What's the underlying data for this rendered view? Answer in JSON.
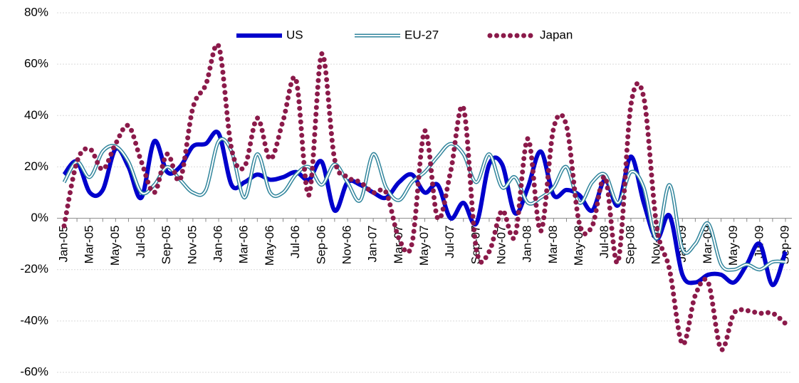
{
  "chart_data": {
    "type": "line",
    "categories": [
      "Jan-05",
      null,
      "Mar-05",
      null,
      "May-05",
      null,
      "Jul-05",
      null,
      "Sep-05",
      null,
      "Nov-05",
      null,
      "Jan-06",
      null,
      "Mar-06",
      null,
      "May-06",
      null,
      "Jul-06",
      null,
      "Sep-06",
      null,
      "Nov-06",
      null,
      "Jan-07",
      null,
      "Mar-07",
      null,
      "May-07",
      null,
      "Jul-07",
      null,
      "Sep-07",
      null,
      "Nov-07",
      null,
      "Jan-08",
      null,
      "Mar-08",
      null,
      "May-08",
      null,
      "Jul-08",
      null,
      "Sep-08",
      null,
      "Nov-08",
      null,
      "Jan-09",
      null,
      "Mar-09",
      null,
      "May-09",
      null,
      "Jul-09",
      null,
      "Sep-09"
    ],
    "series": [
      {
        "name": "US",
        "color": "#0000cc",
        "style": "solid",
        "values": [
          17,
          22,
          10,
          11,
          27,
          20,
          8,
          30,
          18,
          20,
          28,
          29,
          33,
          13,
          14,
          17,
          15,
          16,
          18,
          15,
          22,
          3,
          14,
          13,
          10,
          8,
          14,
          17,
          10,
          13,
          0,
          6,
          -2,
          21,
          21,
          2,
          12,
          26,
          9,
          11,
          9,
          3,
          15,
          5,
          24,
          6,
          -8,
          1,
          -22,
          -25,
          -22,
          -22,
          -25,
          -18,
          -10,
          -26,
          -13
        ]
      },
      {
        "name": "EU-27",
        "color": "#31859c",
        "style": "double",
        "values": [
          14,
          22,
          16,
          26,
          28,
          22,
          10,
          13,
          20,
          15,
          10,
          11,
          30,
          26,
          8,
          25,
          10,
          10,
          17,
          20,
          13,
          21,
          14,
          7,
          25,
          12,
          7,
          14,
          18,
          24,
          29,
          25,
          14,
          25,
          12,
          16,
          6,
          8,
          12,
          20,
          6,
          14,
          17,
          6,
          18,
          12,
          -8,
          13,
          -12,
          -10,
          -2,
          -18,
          -20,
          -18,
          -20,
          -17,
          -17
        ]
      },
      {
        "name": "Japan",
        "color": "#8b1a4a",
        "style": "dotted",
        "values": [
          -3,
          22,
          27,
          19,
          29,
          36,
          22,
          10,
          25,
          15,
          43,
          52,
          67,
          27,
          20,
          39,
          23,
          38,
          54,
          9,
          64,
          23,
          16,
          14,
          10,
          10,
          -8,
          -10,
          34,
          0,
          18,
          43,
          -12,
          -13,
          3,
          -7,
          31,
          -5,
          35,
          36,
          -2,
          -3,
          16,
          -17,
          44,
          47,
          -3,
          -20,
          -49,
          -30,
          -25,
          -51,
          -37,
          -36,
          -37,
          -37,
          -41
        ]
      }
    ],
    "ylim": [
      -60,
      80
    ],
    "yticks": [
      {
        "value": -60,
        "label": "-60%"
      },
      {
        "value": -40,
        "label": "-40%"
      },
      {
        "value": -20,
        "label": "-20%"
      },
      {
        "value": 0,
        "label": "0%"
      },
      {
        "value": 20,
        "label": "20%"
      },
      {
        "value": 40,
        "label": "40%"
      },
      {
        "value": 60,
        "label": "60%"
      },
      {
        "value": 80,
        "label": "80%"
      }
    ],
    "grid": true,
    "legend": "top"
  }
}
